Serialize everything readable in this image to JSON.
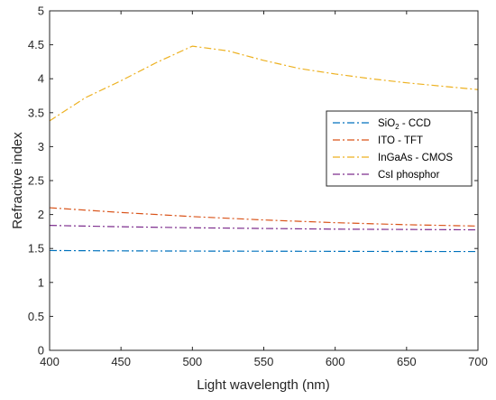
{
  "chart_data": {
    "type": "line",
    "xlabel": "Light wavelength (nm)",
    "ylabel": "Refractive index",
    "xlim": [
      400,
      700
    ],
    "ylim": [
      0,
      5
    ],
    "x_ticks": [
      "400",
      "450",
      "500",
      "550",
      "600",
      "650",
      "700"
    ],
    "y_ticks": [
      "0",
      "0.5",
      "1",
      "1.5",
      "2",
      "2.5",
      "3",
      "3.5",
      "4",
      "4.5",
      "5"
    ],
    "grid": false,
    "legend_position": "right",
    "line_style": "dash-dot",
    "series": [
      {
        "name": "SiO2 - CCD",
        "legend_main": "SiO",
        "legend_sub": "2",
        "legend_rest": " - CCD",
        "color": "#0072BD",
        "x": [
          400,
          450,
          500,
          550,
          600,
          650,
          700
        ],
        "y": [
          1.47,
          1.465,
          1.462,
          1.46,
          1.458,
          1.456,
          1.455
        ]
      },
      {
        "name": "ITO - TFT",
        "legend_main": "ITO - TFT",
        "color": "#D95319",
        "x": [
          400,
          450,
          500,
          550,
          600,
          650,
          700
        ],
        "y": [
          2.1,
          2.03,
          1.97,
          1.92,
          1.88,
          1.85,
          1.83
        ]
      },
      {
        "name": "InGaAs - CMOS",
        "legend_main": "InGaAs - CMOS",
        "color": "#EDB120",
        "x": [
          400,
          425,
          450,
          475,
          500,
          525,
          550,
          575,
          600,
          625,
          650,
          675,
          700
        ],
        "y": [
          3.38,
          3.72,
          3.97,
          4.24,
          4.48,
          4.41,
          4.27,
          4.15,
          4.07,
          4.0,
          3.94,
          3.89,
          3.84
        ]
      },
      {
        "name": "CsI phosphor",
        "legend_main": "CsI phosphor",
        "color": "#7E2F8E",
        "x": [
          400,
          450,
          500,
          550,
          600,
          650,
          700
        ],
        "y": [
          1.84,
          1.82,
          1.805,
          1.795,
          1.785,
          1.78,
          1.775
        ]
      }
    ]
  }
}
